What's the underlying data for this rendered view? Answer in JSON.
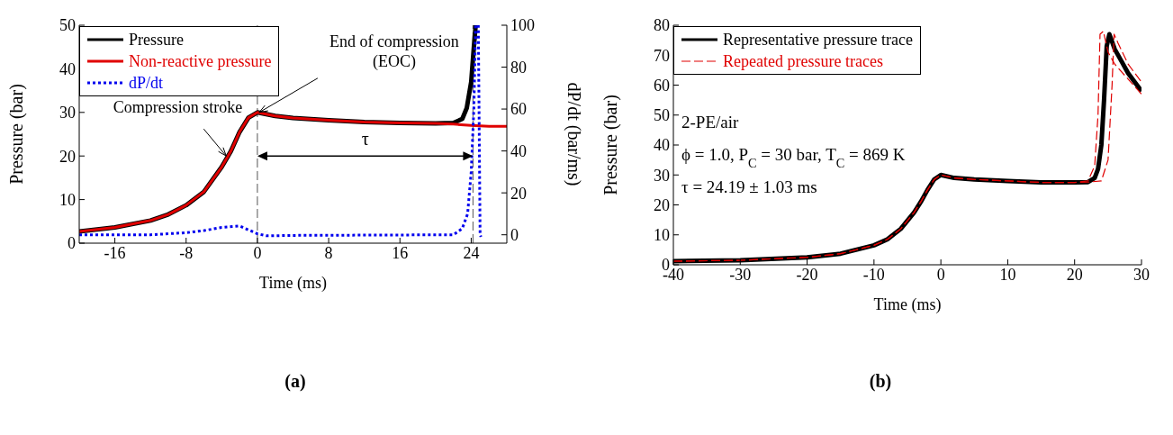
{
  "chart_data": [
    {
      "type": "line",
      "title": "(a)",
      "xlabel": "Time (ms)",
      "ylabel": "Pressure (bar)",
      "y2label": "dP/dt (bar/ms)",
      "xlim": [
        -20,
        28
      ],
      "xticks": [
        -16,
        -8,
        0,
        8,
        16,
        24
      ],
      "ylim": [
        0,
        50
      ],
      "yticks": [
        0,
        10,
        20,
        30,
        40,
        50
      ],
      "y2lim": [
        -4,
        100
      ],
      "y2ticks": [
        0,
        20,
        40,
        60,
        80,
        100
      ],
      "legend": "top left",
      "grid": false,
      "marker": "none",
      "series": [
        {
          "name": "Pressure",
          "color": "#000000",
          "line_style": "solid",
          "x": [
            -20,
            -16,
            -12,
            -10,
            -8,
            -6,
            -4,
            -3,
            -2,
            -1,
            0,
            2,
            4,
            8,
            12,
            16,
            20,
            22,
            23,
            23.5,
            24,
            24.3,
            24.5
          ],
          "values": [
            2.7,
            3.6,
            5.2,
            6.6,
            8.7,
            11.8,
            17.5,
            21,
            25.5,
            28.8,
            30,
            29.2,
            28.7,
            28.2,
            27.8,
            27.6,
            27.5,
            27.6,
            28.5,
            31,
            37,
            45,
            50
          ]
        },
        {
          "name": "Non-reactive pressure",
          "color": "#e00000",
          "line_style": "solid",
          "x": [
            -20,
            -16,
            -12,
            -10,
            -8,
            -6,
            -4,
            -3,
            -2,
            -1,
            0,
            2,
            4,
            8,
            12,
            16,
            20,
            22,
            24,
            26,
            28
          ],
          "values": [
            2.7,
            3.6,
            5.2,
            6.6,
            8.7,
            11.8,
            17.5,
            21,
            25.5,
            28.8,
            30,
            29.2,
            28.7,
            28.2,
            27.8,
            27.6,
            27.5,
            27.3,
            27,
            26.8,
            26.8
          ]
        },
        {
          "name": "dP/dt",
          "color": "#0000ee",
          "line_style": "dotted",
          "axis": "y2",
          "x": [
            -20,
            -12,
            -10,
            -8,
            -6,
            -4,
            -2,
            0,
            1,
            4,
            22,
            23,
            23.6,
            24,
            24.3,
            24.5,
            24.8,
            25,
            25.1
          ],
          "values": [
            0,
            0,
            0.5,
            1,
            2,
            3.5,
            4.2,
            0.5,
            -0.5,
            -0.3,
            0,
            3,
            10,
            30,
            60,
            100,
            100,
            0,
            -1
          ]
        }
      ],
      "ref_lines": [
        {
          "axis": "x",
          "value": 0,
          "color": "#555555",
          "line_style": "dashed"
        },
        {
          "axis": "x",
          "value": 24.2,
          "color": "#555555",
          "line_style": "dashed"
        }
      ],
      "annotations": [
        {
          "text": "Compression stroke",
          "x": -3.5,
          "y": 20
        },
        {
          "text": "End of compression (EOC)",
          "x": 0.2,
          "y": 30
        },
        "τ"
      ]
    },
    {
      "type": "line",
      "title": "(b)",
      "xlabel": "Time (ms)",
      "ylabel": "Pressure (bar)",
      "xlim": [
        -40,
        30
      ],
      "xticks": [
        -40,
        -30,
        -20,
        -10,
        0,
        10,
        20,
        30
      ],
      "ylim": [
        0,
        80
      ],
      "yticks": [
        0,
        10,
        20,
        30,
        40,
        50,
        60,
        70,
        80
      ],
      "legend": "top left",
      "grid": false,
      "marker": "none",
      "series": [
        {
          "name": "Representative pressure trace",
          "color": "#000000",
          "line_style": "solid",
          "x": [
            -40,
            -30,
            -20,
            -15,
            -10,
            -8,
            -6,
            -4,
            -3,
            -2,
            -1,
            0,
            2,
            5,
            10,
            15,
            20,
            22,
            23,
            23.5,
            24,
            24.4,
            24.8,
            25.2,
            26,
            27,
            28,
            29,
            30
          ],
          "values": [
            1.2,
            1.5,
            2.5,
            3.7,
            6.5,
            8.5,
            12,
            17.5,
            21,
            25,
            28.5,
            30,
            29,
            28.5,
            28,
            27.5,
            27.5,
            27.6,
            29,
            32,
            40,
            55,
            73,
            77,
            72,
            68,
            64,
            61,
            58
          ]
        },
        {
          "name": "Repeated pressure traces",
          "color": "#e00000",
          "line_style": "dashed",
          "x": [
            -40,
            -30,
            -20,
            -15,
            -10,
            -8,
            -6,
            -4,
            -3,
            -2,
            -1,
            0,
            2,
            5,
            10,
            15,
            20,
            22,
            23,
            23.5,
            23.8,
            24.3,
            25,
            26,
            28,
            30
          ],
          "values": [
            1.2,
            1.5,
            2.5,
            3.7,
            6.5,
            8.5,
            12,
            17.5,
            21,
            25,
            28.5,
            30,
            29,
            28.5,
            28,
            27.5,
            27.5,
            28,
            33,
            50,
            77,
            78,
            71,
            67,
            62,
            57
          ]
        },
        {
          "color": "#e00000",
          "line_style": "dashed",
          "x": [
            -40,
            -30,
            -20,
            -15,
            -10,
            -8,
            -6,
            -4,
            -3,
            -2,
            -1,
            0,
            2,
            5,
            10,
            15,
            20,
            22,
            24,
            25,
            25.6,
            25.9,
            26.5,
            28,
            30
          ],
          "values": [
            1.2,
            1.5,
            2.5,
            3.7,
            6.5,
            8.5,
            12,
            17.5,
            21,
            25,
            28.5,
            30,
            29,
            28.5,
            28,
            27.5,
            27.5,
            27.6,
            28,
            35,
            60,
            77,
            74,
            67,
            61
          ]
        }
      ],
      "annotations": [
        "2-PE/air",
        "ϕ = 1.0, P$_{C}$ = 30 bar, T$_{C}$ = 869 K",
        "τ = 24.19 ± 1.03 ms"
      ]
    }
  ]
}
